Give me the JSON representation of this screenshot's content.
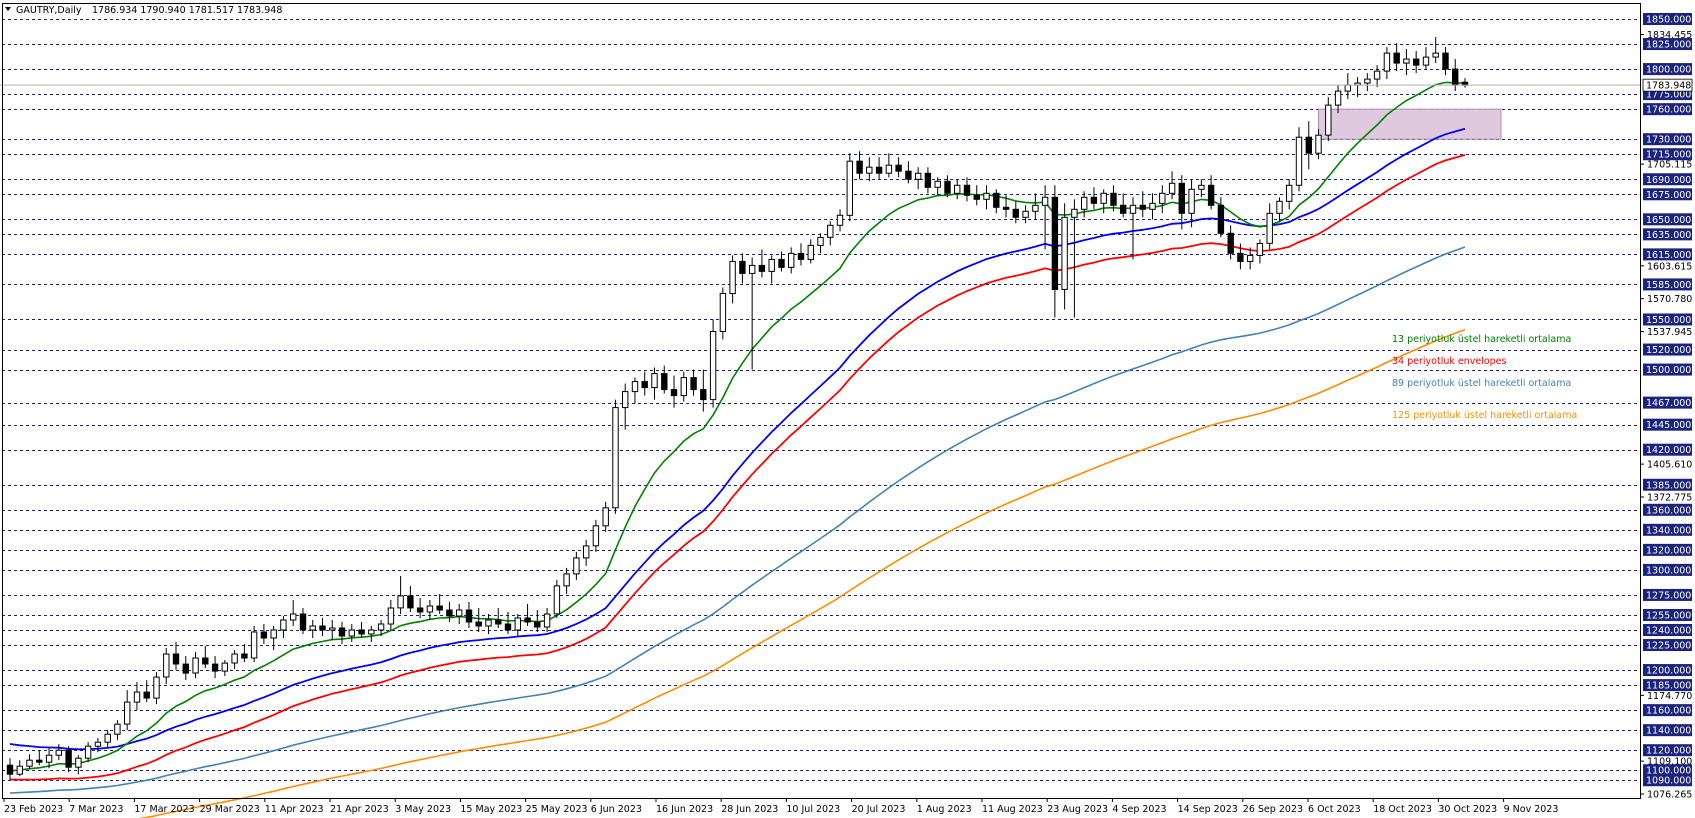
{
  "header": {
    "symbol": "GAUTRY,Daily",
    "ohlc": "1786.934 1790.940 1781.517 1783.948",
    "current_price": "1783.948"
  },
  "chart_data": {
    "type": "candlestick",
    "symbol": "GAUTRY",
    "timeframe": "Daily",
    "ylim": [
      1076.265,
      1850.0
    ],
    "x_ticks": [
      "23 Feb 2023",
      "7 Mar 2023",
      "17 Mar 2023",
      "29 Mar 2023",
      "11 Apr 2023",
      "21 Apr 2023",
      "3 May 2023",
      "15 May 2023",
      "25 May 2023",
      "6 Jun 2023",
      "16 Jun 2023",
      "28 Jun 2023",
      "10 Jul 2023",
      "20 Jul 2023",
      "1 Aug 2023",
      "11 Aug 2023",
      "23 Aug 2023",
      "4 Sep 2023",
      "14 Sep 2023",
      "26 Sep 2023",
      "6 Oct 2023",
      "18 Oct 2023",
      "30 Oct 2023",
      "9 Nov 2023"
    ],
    "boxed_levels": [
      "1850.000",
      "1825.000",
      "1800.000",
      "1775.000",
      "1760.000",
      "1730.000",
      "1715.000",
      "1690.000",
      "1675.000",
      "1650.000",
      "1635.000",
      "1615.000",
      "1585.000",
      "1550.000",
      "1520.000",
      "1500.000",
      "1467.000",
      "1445.000",
      "1420.000",
      "1385.000",
      "1360.000",
      "1340.000",
      "1320.000",
      "1300.000",
      "1275.000",
      "1255.000",
      "1240.000",
      "1225.000",
      "1200.000",
      "1185.000",
      "1160.000",
      "1140.000",
      "1120.000",
      "1100.000",
      "1090.000"
    ],
    "plain_levels": [
      "1834.455",
      "1705.115",
      "1603.615",
      "1570.780",
      "1537.945",
      "1405.610",
      "1372.775",
      "1174.770",
      "1109.100",
      "1076.265"
    ],
    "current_price": "1783.948",
    "zone": {
      "low": 1730,
      "high": 1760,
      "color": "#d8bfd8"
    },
    "candles_ohlc": [
      [
        1105,
        1112,
        1090,
        1096
      ],
      [
        1096,
        1110,
        1094,
        1104
      ],
      [
        1104,
        1116,
        1101,
        1110
      ],
      [
        1110,
        1120,
        1105,
        1108
      ],
      [
        1108,
        1122,
        1102,
        1115
      ],
      [
        1115,
        1126,
        1110,
        1120
      ],
      [
        1120,
        1124,
        1098,
        1103
      ],
      [
        1103,
        1115,
        1096,
        1112
      ],
      [
        1112,
        1128,
        1108,
        1124
      ],
      [
        1124,
        1132,
        1118,
        1128
      ],
      [
        1128,
        1140,
        1122,
        1136
      ],
      [
        1136,
        1150,
        1130,
        1146
      ],
      [
        1146,
        1180,
        1140,
        1168
      ],
      [
        1168,
        1188,
        1160,
        1178
      ],
      [
        1178,
        1190,
        1168,
        1172
      ],
      [
        1172,
        1198,
        1166,
        1193
      ],
      [
        1193,
        1222,
        1186,
        1216
      ],
      [
        1216,
        1228,
        1200,
        1206
      ],
      [
        1206,
        1214,
        1190,
        1197
      ],
      [
        1197,
        1218,
        1192,
        1212
      ],
      [
        1212,
        1224,
        1202,
        1206
      ],
      [
        1206,
        1214,
        1192,
        1199
      ],
      [
        1199,
        1210,
        1194,
        1207
      ],
      [
        1207,
        1220,
        1201,
        1216
      ],
      [
        1216,
        1226,
        1208,
        1212
      ],
      [
        1212,
        1244,
        1208,
        1238
      ],
      [
        1238,
        1246,
        1226,
        1232
      ],
      [
        1232,
        1244,
        1220,
        1240
      ],
      [
        1240,
        1254,
        1232,
        1250
      ],
      [
        1250,
        1270,
        1244,
        1256
      ],
      [
        1256,
        1262,
        1236,
        1240
      ],
      [
        1240,
        1250,
        1232,
        1244
      ],
      [
        1244,
        1252,
        1234,
        1240
      ],
      [
        1240,
        1250,
        1230,
        1242
      ],
      [
        1242,
        1248,
        1226,
        1234
      ],
      [
        1234,
        1246,
        1228,
        1240
      ],
      [
        1240,
        1248,
        1232,
        1236
      ],
      [
        1236,
        1244,
        1228,
        1240
      ],
      [
        1240,
        1250,
        1234,
        1246
      ],
      [
        1246,
        1270,
        1240,
        1262
      ],
      [
        1262,
        1294,
        1256,
        1274
      ],
      [
        1274,
        1284,
        1258,
        1262
      ],
      [
        1262,
        1272,
        1252,
        1258
      ],
      [
        1258,
        1270,
        1250,
        1264
      ],
      [
        1264,
        1276,
        1256,
        1260
      ],
      [
        1260,
        1268,
        1248,
        1254
      ],
      [
        1254,
        1266,
        1246,
        1260
      ],
      [
        1260,
        1268,
        1242,
        1248
      ],
      [
        1248,
        1262,
        1238,
        1244
      ],
      [
        1244,
        1256,
        1236,
        1250
      ],
      [
        1250,
        1262,
        1242,
        1246
      ],
      [
        1246,
        1258,
        1236,
        1240
      ],
      [
        1240,
        1256,
        1234,
        1252
      ],
      [
        1252,
        1266,
        1244,
        1248
      ],
      [
        1248,
        1260,
        1238,
        1243
      ],
      [
        1243,
        1262,
        1238,
        1256
      ],
      [
        1256,
        1290,
        1252,
        1284
      ],
      [
        1284,
        1302,
        1276,
        1296
      ],
      [
        1296,
        1318,
        1290,
        1312
      ],
      [
        1312,
        1330,
        1304,
        1324
      ],
      [
        1324,
        1350,
        1318,
        1344
      ],
      [
        1344,
        1368,
        1338,
        1362
      ],
      [
        1362,
        1470,
        1356,
        1462
      ],
      [
        1462,
        1486,
        1440,
        1478
      ],
      [
        1478,
        1492,
        1466,
        1488
      ],
      [
        1488,
        1498,
        1474,
        1482
      ],
      [
        1482,
        1502,
        1470,
        1496
      ],
      [
        1496,
        1504,
        1476,
        1480
      ],
      [
        1480,
        1494,
        1462,
        1474
      ],
      [
        1474,
        1498,
        1468,
        1492
      ],
      [
        1492,
        1500,
        1474,
        1480
      ],
      [
        1480,
        1500,
        1458,
        1470
      ],
      [
        1470,
        1550,
        1462,
        1538
      ],
      [
        1538,
        1582,
        1530,
        1576
      ],
      [
        1576,
        1614,
        1566,
        1608
      ],
      [
        1608,
        1616,
        1586,
        1596
      ],
      [
        1596,
        1612,
        1500,
        1604
      ],
      [
        1604,
        1620,
        1592,
        1598
      ],
      [
        1598,
        1614,
        1586,
        1610
      ],
      [
        1610,
        1618,
        1598,
        1602
      ],
      [
        1602,
        1622,
        1596,
        1616
      ],
      [
        1616,
        1626,
        1604,
        1610
      ],
      [
        1610,
        1630,
        1606,
        1624
      ],
      [
        1624,
        1636,
        1616,
        1632
      ],
      [
        1632,
        1648,
        1624,
        1644
      ],
      [
        1644,
        1660,
        1638,
        1654
      ],
      [
        1654,
        1716,
        1648,
        1708
      ],
      [
        1708,
        1718,
        1690,
        1696
      ],
      [
        1696,
        1712,
        1688,
        1702
      ],
      [
        1702,
        1712,
        1690,
        1696
      ],
      [
        1696,
        1716,
        1692,
        1704
      ],
      [
        1704,
        1712,
        1692,
        1698
      ],
      [
        1698,
        1708,
        1686,
        1690
      ],
      [
        1690,
        1702,
        1680,
        1696
      ],
      [
        1696,
        1702,
        1676,
        1682
      ],
      [
        1682,
        1692,
        1674,
        1688
      ],
      [
        1688,
        1694,
        1672,
        1676
      ],
      [
        1676,
        1690,
        1670,
        1684
      ],
      [
        1684,
        1692,
        1668,
        1674
      ],
      [
        1674,
        1684,
        1664,
        1670
      ],
      [
        1670,
        1684,
        1660,
        1676
      ],
      [
        1676,
        1680,
        1656,
        1662
      ],
      [
        1662,
        1674,
        1652,
        1660
      ],
      [
        1660,
        1668,
        1646,
        1652
      ],
      [
        1652,
        1664,
        1646,
        1658
      ],
      [
        1658,
        1676,
        1650,
        1664
      ],
      [
        1664,
        1684,
        1620,
        1672
      ],
      [
        1672,
        1684,
        1552,
        1580
      ],
      [
        1580,
        1666,
        1560,
        1652
      ],
      [
        1652,
        1670,
        1552,
        1660
      ],
      [
        1660,
        1678,
        1652,
        1672
      ],
      [
        1672,
        1682,
        1660,
        1666
      ],
      [
        1666,
        1680,
        1656,
        1676
      ],
      [
        1676,
        1684,
        1658,
        1664
      ],
      [
        1664,
        1676,
        1652,
        1656
      ],
      [
        1656,
        1672,
        1610,
        1664
      ],
      [
        1664,
        1678,
        1652,
        1660
      ],
      [
        1660,
        1676,
        1650,
        1666
      ],
      [
        1666,
        1684,
        1656,
        1676
      ],
      [
        1676,
        1698,
        1670,
        1686
      ],
      [
        1686,
        1694,
        1640,
        1656
      ],
      [
        1656,
        1690,
        1642,
        1680
      ],
      [
        1680,
        1690,
        1672,
        1684
      ],
      [
        1684,
        1694,
        1660,
        1664
      ],
      [
        1664,
        1672,
        1632,
        1636
      ],
      [
        1636,
        1644,
        1610,
        1616
      ],
      [
        1616,
        1626,
        1600,
        1608
      ],
      [
        1608,
        1622,
        1600,
        1614
      ],
      [
        1614,
        1630,
        1606,
        1626
      ],
      [
        1626,
        1666,
        1620,
        1656
      ],
      [
        1656,
        1672,
        1648,
        1668
      ],
      [
        1668,
        1690,
        1660,
        1684
      ],
      [
        1684,
        1742,
        1678,
        1732
      ],
      [
        1732,
        1748,
        1700,
        1716
      ],
      [
        1716,
        1740,
        1710,
        1734
      ],
      [
        1734,
        1772,
        1728,
        1764
      ],
      [
        1764,
        1784,
        1756,
        1778
      ],
      [
        1778,
        1796,
        1770,
        1784
      ],
      [
        1784,
        1792,
        1772,
        1786
      ],
      [
        1786,
        1796,
        1778,
        1790
      ],
      [
        1790,
        1804,
        1782,
        1798
      ],
      [
        1798,
        1822,
        1790,
        1816
      ],
      [
        1816,
        1826,
        1798,
        1806
      ],
      [
        1806,
        1820,
        1794,
        1810
      ],
      [
        1810,
        1818,
        1796,
        1804
      ],
      [
        1804,
        1822,
        1800,
        1812
      ],
      [
        1812,
        1832,
        1806,
        1816
      ],
      [
        1816,
        1822,
        1794,
        1800
      ],
      [
        1800,
        1810,
        1778,
        1784
      ],
      [
        1786.934,
        1790.94,
        1781.517,
        1783.948
      ]
    ],
    "moving_averages": [
      {
        "name": "13 periyotluk üstel hareketli ortalama",
        "color": "#008000"
      },
      {
        "name": "34 periyotluk envelopes",
        "color": "#ff0000"
      },
      {
        "name": "",
        "color": "#0000ff"
      },
      {
        "name": "89 periyotluk üstel hareketli ortalama",
        "color": "#4682b4"
      },
      {
        "name": "125 periyotluk üstel hareketli ortalama",
        "color": "#ff8c00"
      }
    ],
    "grid": true,
    "legend_position": "right"
  }
}
